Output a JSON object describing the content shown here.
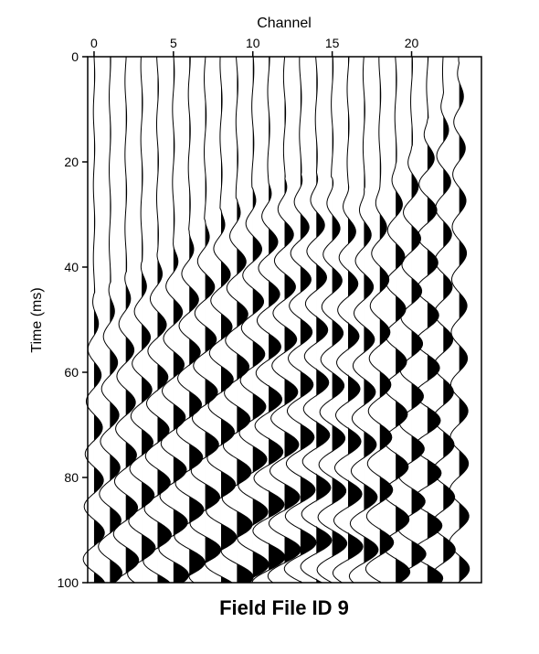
{
  "chart_data": {
    "type": "seismic-wiggle",
    "title": "Field File ID 9",
    "xlabel": "Channel",
    "ylabel": "Time (ms)",
    "xlim": [
      -0.4,
      24.4
    ],
    "ylim": [
      0,
      100
    ],
    "y_inverted": true,
    "x_ticks": [
      0,
      5,
      10,
      15,
      20
    ],
    "x_tick_labels": [
      "0",
      "5",
      "10",
      "15",
      "20"
    ],
    "y_ticks": [
      0,
      20,
      40,
      60,
      80,
      100
    ],
    "y_tick_labels": [
      "0",
      "20",
      "40",
      "60",
      "80",
      "100"
    ],
    "grid": false,
    "fill": "positive lobes filled black",
    "n_traces": 24,
    "trace_channels": [
      0,
      1,
      2,
      3,
      4,
      5,
      6,
      7,
      8,
      9,
      10,
      11,
      12,
      13,
      14,
      15,
      16,
      17,
      18,
      19,
      20,
      21,
      22,
      23
    ],
    "first_arrival_ms": [
      48,
      46,
      44,
      42,
      40,
      38,
      36,
      34,
      32,
      30,
      28,
      27,
      26,
      25,
      25,
      26,
      27,
      28,
      27,
      23,
      20,
      15,
      10,
      4
    ],
    "trace_amplitude": [
      0.55,
      0.6,
      0.65,
      0.7,
      0.72,
      0.75,
      0.78,
      0.8,
      0.8,
      0.8,
      0.8,
      0.82,
      0.82,
      0.8,
      0.78,
      0.75,
      0.75,
      0.72,
      0.7,
      0.7,
      0.72,
      0.75,
      0.6,
      0.5
    ],
    "dominant_period_ms": 10
  }
}
